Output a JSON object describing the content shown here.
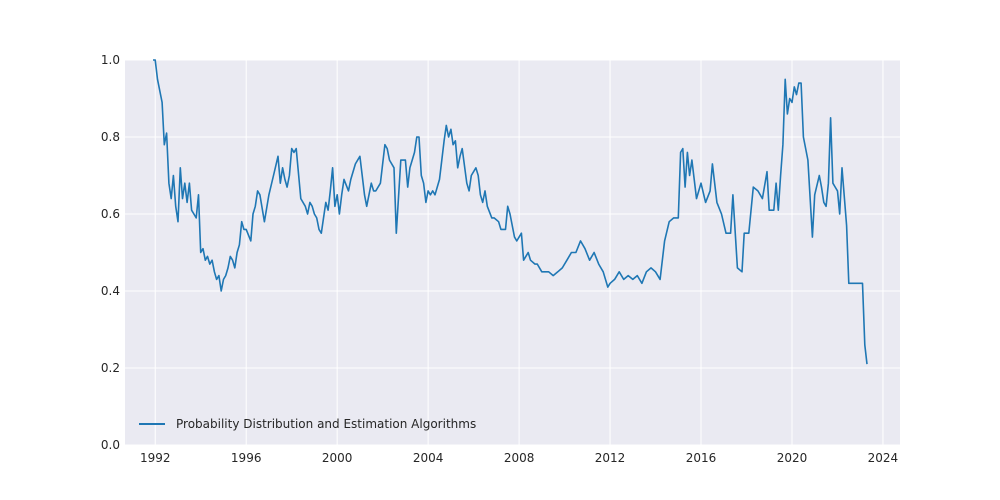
{
  "chart_data": {
    "type": "line",
    "title": "",
    "xlabel": "",
    "ylabel": "",
    "xlim": [
      1990.67,
      2024.75
    ],
    "ylim": [
      0.0,
      1.0
    ],
    "grid": true,
    "legend_placement": "lower-left",
    "colors": {
      "line": "#1f77b4",
      "plot_bg": "#eaeaf2",
      "grid": "#ffffff"
    },
    "x_ticks": [
      1992,
      1996,
      2000,
      2004,
      2008,
      2012,
      2016,
      2020,
      2024
    ],
    "x_tick_labels": [
      "1992",
      "1996",
      "2000",
      "2004",
      "2008",
      "2012",
      "2016",
      "2020",
      "2024"
    ],
    "y_ticks": [
      0.0,
      0.2,
      0.4,
      0.6,
      0.8,
      1.0
    ],
    "y_tick_labels": [
      "0.0",
      "0.2",
      "0.4",
      "0.6",
      "0.8",
      "1.0"
    ],
    "series": [
      {
        "name": "Probability Distribution and Estimation Algorithms",
        "color": "#1f77b4",
        "x": [
          1991.9,
          1992.0,
          1992.1,
          1992.3,
          1992.4,
          1992.5,
          1992.6,
          1992.7,
          1992.8,
          1992.9,
          1993.0,
          1993.1,
          1993.2,
          1993.3,
          1993.4,
          1993.5,
          1993.6,
          1993.7,
          1993.8,
          1993.9,
          1994.0,
          1994.1,
          1994.2,
          1994.3,
          1994.4,
          1994.5,
          1994.6,
          1994.7,
          1994.8,
          1994.9,
          1995.0,
          1995.1,
          1995.2,
          1995.3,
          1995.4,
          1995.5,
          1995.6,
          1995.7,
          1995.8,
          1995.9,
          1996.0,
          1996.2,
          1996.3,
          1996.4,
          1996.5,
          1996.6,
          1996.8,
          1997.0,
          1997.2,
          1997.4,
          1997.5,
          1997.6,
          1997.7,
          1997.8,
          1997.9,
          1998.0,
          1998.1,
          1998.2,
          1998.4,
          1998.6,
          1998.7,
          1998.8,
          1998.9,
          1999.0,
          1999.1,
          1999.2,
          1999.3,
          1999.5,
          1999.6,
          1999.7,
          1999.8,
          1999.9,
          2000.0,
          2000.1,
          2000.2,
          2000.3,
          2000.5,
          2000.6,
          2000.8,
          2001.0,
          2001.1,
          2001.2,
          2001.3,
          2001.5,
          2001.6,
          2001.7,
          2001.9,
          2002.1,
          2002.2,
          2002.3,
          2002.5,
          2002.6,
          2002.8,
          2003.0,
          2003.1,
          2003.2,
          2003.3,
          2003.4,
          2003.5,
          2003.6,
          2003.7,
          2003.8,
          2003.9,
          2004.0,
          2004.1,
          2004.2,
          2004.3,
          2004.5,
          2004.6,
          2004.7,
          2004.8,
          2004.9,
          2005.0,
          2005.1,
          2005.2,
          2005.3,
          2005.4,
          2005.5,
          2005.7,
          2005.8,
          2005.9,
          2006.1,
          2006.2,
          2006.3,
          2006.4,
          2006.5,
          2006.6,
          2006.8,
          2006.9,
          2007.1,
          2007.2,
          2007.4,
          2007.5,
          2007.6,
          2007.8,
          2007.9,
          2008.1,
          2008.2,
          2008.4,
          2008.5,
          2008.7,
          2008.8,
          2009.0,
          2009.2,
          2009.3,
          2009.5,
          2009.7,
          2009.9,
          2010.1,
          2010.3,
          2010.5,
          2010.7,
          2010.9,
          2011.1,
          2011.3,
          2011.5,
          2011.7,
          2011.9,
          2012.0,
          2012.2,
          2012.4,
          2012.6,
          2012.8,
          2013.0,
          2013.2,
          2013.4,
          2013.6,
          2013.8,
          2014.0,
          2014.2,
          2014.4,
          2014.6,
          2014.8,
          2015.0,
          2015.1,
          2015.2,
          2015.3,
          2015.4,
          2015.5,
          2015.6,
          2015.7,
          2015.8,
          2016.0,
          2016.2,
          2016.4,
          2016.5,
          2016.7,
          2016.9,
          2017.1,
          2017.3,
          2017.4,
          2017.6,
          2017.8,
          2017.9,
          2018.1,
          2018.3,
          2018.5,
          2018.7,
          2018.9,
          2019.0,
          2019.2,
          2019.3,
          2019.4,
          2019.5,
          2019.6,
          2019.7,
          2019.8,
          2019.9,
          2020.0,
          2020.1,
          2020.2,
          2020.3,
          2020.4,
          2020.5,
          2020.7,
          2020.9,
          2021.0,
          2021.2,
          2021.3,
          2021.4,
          2021.5,
          2021.6,
          2021.7,
          2021.8,
          2021.9,
          2022.0,
          2022.1,
          2022.2,
          2022.4,
          2022.5,
          2022.7,
          2022.9,
          2023.0,
          2023.1,
          2023.2,
          2023.3
        ],
        "y": [
          1.0,
          1.0,
          0.95,
          0.89,
          0.78,
          0.81,
          0.68,
          0.64,
          0.7,
          0.62,
          0.58,
          0.72,
          0.64,
          0.68,
          0.63,
          0.68,
          0.61,
          0.6,
          0.59,
          0.65,
          0.5,
          0.51,
          0.48,
          0.49,
          0.47,
          0.48,
          0.45,
          0.43,
          0.44,
          0.4,
          0.43,
          0.44,
          0.46,
          0.49,
          0.48,
          0.46,
          0.5,
          0.52,
          0.58,
          0.56,
          0.56,
          0.53,
          0.6,
          0.62,
          0.66,
          0.65,
          0.58,
          0.65,
          0.7,
          0.75,
          0.68,
          0.72,
          0.69,
          0.67,
          0.7,
          0.77,
          0.76,
          0.77,
          0.64,
          0.62,
          0.6,
          0.63,
          0.62,
          0.6,
          0.59,
          0.56,
          0.55,
          0.63,
          0.61,
          0.66,
          0.72,
          0.62,
          0.65,
          0.6,
          0.65,
          0.69,
          0.66,
          0.69,
          0.73,
          0.75,
          0.7,
          0.65,
          0.62,
          0.68,
          0.66,
          0.66,
          0.68,
          0.78,
          0.77,
          0.74,
          0.72,
          0.55,
          0.74,
          0.74,
          0.67,
          0.72,
          0.74,
          0.76,
          0.8,
          0.8,
          0.7,
          0.68,
          0.63,
          0.66,
          0.65,
          0.66,
          0.65,
          0.69,
          0.74,
          0.79,
          0.83,
          0.8,
          0.82,
          0.78,
          0.79,
          0.72,
          0.75,
          0.77,
          0.68,
          0.66,
          0.7,
          0.72,
          0.7,
          0.65,
          0.63,
          0.66,
          0.62,
          0.59,
          0.59,
          0.58,
          0.56,
          0.56,
          0.62,
          0.6,
          0.54,
          0.53,
          0.55,
          0.48,
          0.5,
          0.48,
          0.47,
          0.47,
          0.45,
          0.45,
          0.45,
          0.44,
          0.45,
          0.46,
          0.48,
          0.5,
          0.5,
          0.53,
          0.51,
          0.48,
          0.5,
          0.47,
          0.45,
          0.41,
          0.42,
          0.43,
          0.45,
          0.43,
          0.44,
          0.43,
          0.44,
          0.42,
          0.45,
          0.46,
          0.45,
          0.43,
          0.53,
          0.58,
          0.59,
          0.59,
          0.76,
          0.77,
          0.67,
          0.76,
          0.7,
          0.74,
          0.69,
          0.64,
          0.68,
          0.63,
          0.66,
          0.73,
          0.63,
          0.6,
          0.55,
          0.55,
          0.65,
          0.46,
          0.45,
          0.55,
          0.55,
          0.67,
          0.66,
          0.64,
          0.71,
          0.61,
          0.61,
          0.68,
          0.61,
          0.7,
          0.78,
          0.95,
          0.86,
          0.9,
          0.89,
          0.93,
          0.91,
          0.94,
          0.94,
          0.8,
          0.74,
          0.54,
          0.65,
          0.7,
          0.67,
          0.63,
          0.62,
          0.68,
          0.85,
          0.68,
          0.67,
          0.66,
          0.6,
          0.72,
          0.57,
          0.42,
          0.42,
          0.42,
          0.42,
          0.42,
          0.26,
          0.21
        ]
      }
    ]
  }
}
